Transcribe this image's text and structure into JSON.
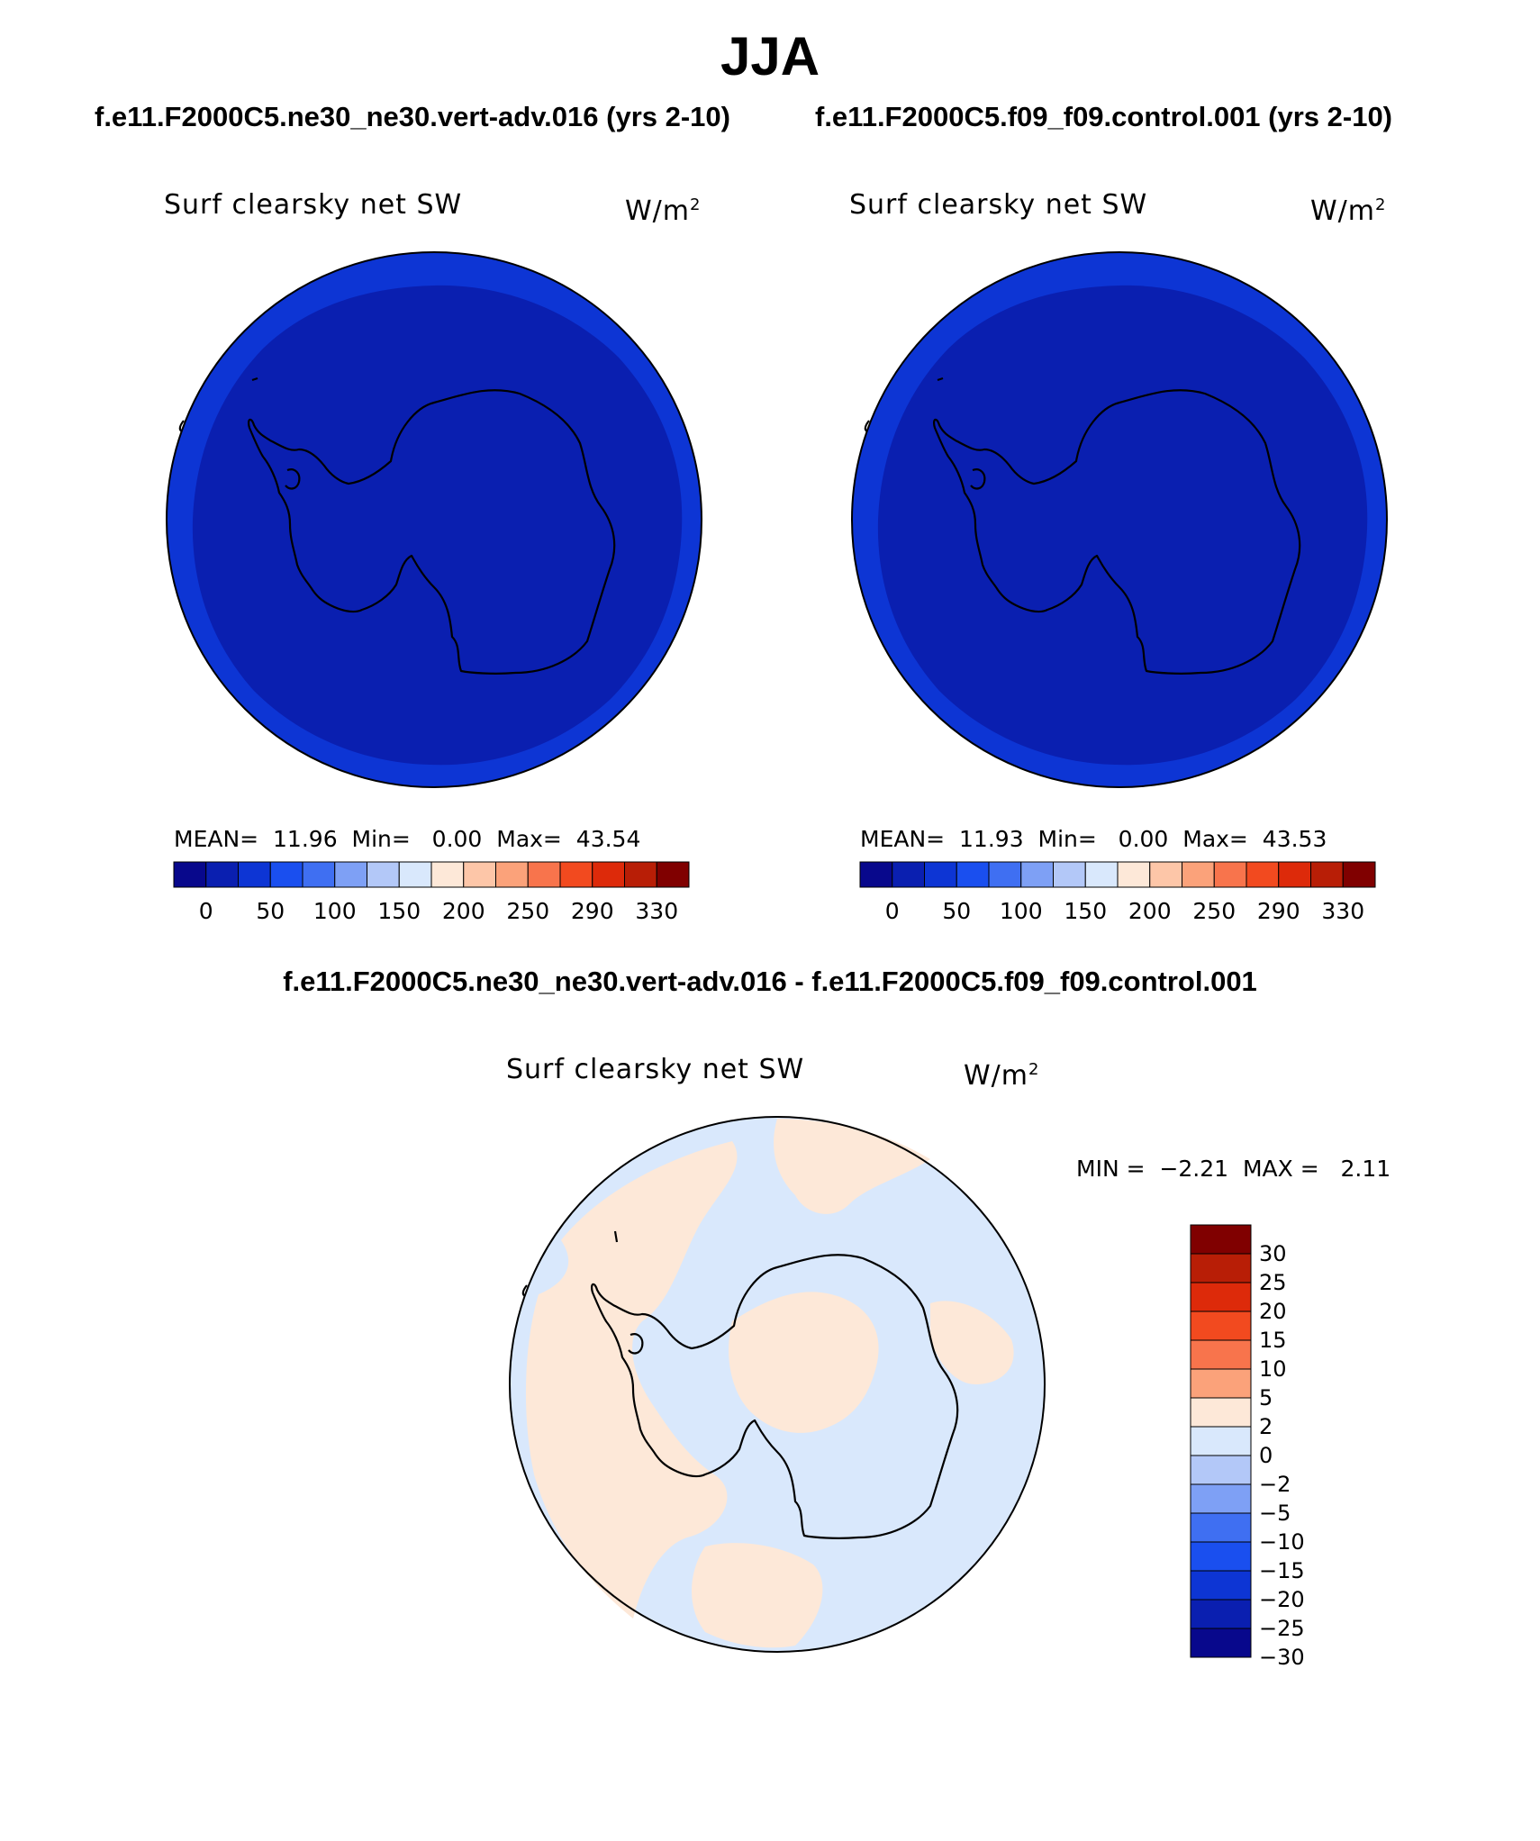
{
  "title": "JJA",
  "panels": [
    {
      "case_title": "f.e11.F2000C5.ne30_ne30.vert-adv.016 (yrs 2-10)",
      "var_title": "Surf clearsky net SW",
      "units_base": "W/m",
      "units_exp": "2",
      "stats": {
        "mean_label": "MEAN=",
        "mean": "11.96",
        "min_label": "Min=",
        "min": "0.00",
        "max_label": "Max=",
        "max": "43.54"
      }
    },
    {
      "case_title": "f.e11.F2000C5.f09_f09.control.001 (yrs 2-10)",
      "var_title": "Surf clearsky net SW",
      "units_base": "W/m",
      "units_exp": "2",
      "stats": {
        "mean_label": "MEAN=",
        "mean": "11.93",
        "min_label": "Min=",
        "min": "0.00",
        "max_label": "Max=",
        "max": "43.53"
      }
    }
  ],
  "abs_colorbar": {
    "colors": [
      "#08088c",
      "#0a1fb0",
      "#0d35d4",
      "#1a4fef",
      "#3f6ff2",
      "#7ea0f5",
      "#b3c8f8",
      "#d9e8fc",
      "#fde8d8",
      "#fdc6a8",
      "#fba27a",
      "#f8744c",
      "#f24a1f",
      "#dd2a0a",
      "#b81e06",
      "#800000"
    ],
    "ticks": [
      "0",
      "50",
      "100",
      "150",
      "200",
      "250",
      "290",
      "330"
    ]
  },
  "diff_panel": {
    "case_title": "f.e11.F2000C5.ne30_ne30.vert-adv.016 - f.e11.F2000C5.f09_f09.control.001",
    "var_title": "Surf clearsky net SW",
    "units_base": "W/m",
    "units_exp": "2",
    "stats": {
      "min_label": "MIN =",
      "min": "−2.21",
      "max_label": "MAX =",
      "max": "2.11"
    }
  },
  "diff_colorbar": {
    "colors": [
      "#800000",
      "#b81e06",
      "#dd2a0a",
      "#f24a1f",
      "#f8744c",
      "#fba27a",
      "#fde8d8",
      "#d9e8fc",
      "#b3c8f8",
      "#7ea0f5",
      "#3f6ff2",
      "#1a4fef",
      "#0d35d4",
      "#0a1fb0",
      "#08088c"
    ],
    "ticks": [
      "30",
      "25",
      "20",
      "15",
      "10",
      "5",
      "2",
      "0",
      "−2",
      "−5",
      "−10",
      "−15",
      "−20",
      "−25",
      "−30"
    ]
  },
  "map_colors": {
    "ocean_outer": "#0d35d4",
    "inner": "#0a1fb0",
    "diff_pos": "#fde8d8",
    "diff_neg": "#d9e8fc",
    "coast": "#000000"
  }
}
